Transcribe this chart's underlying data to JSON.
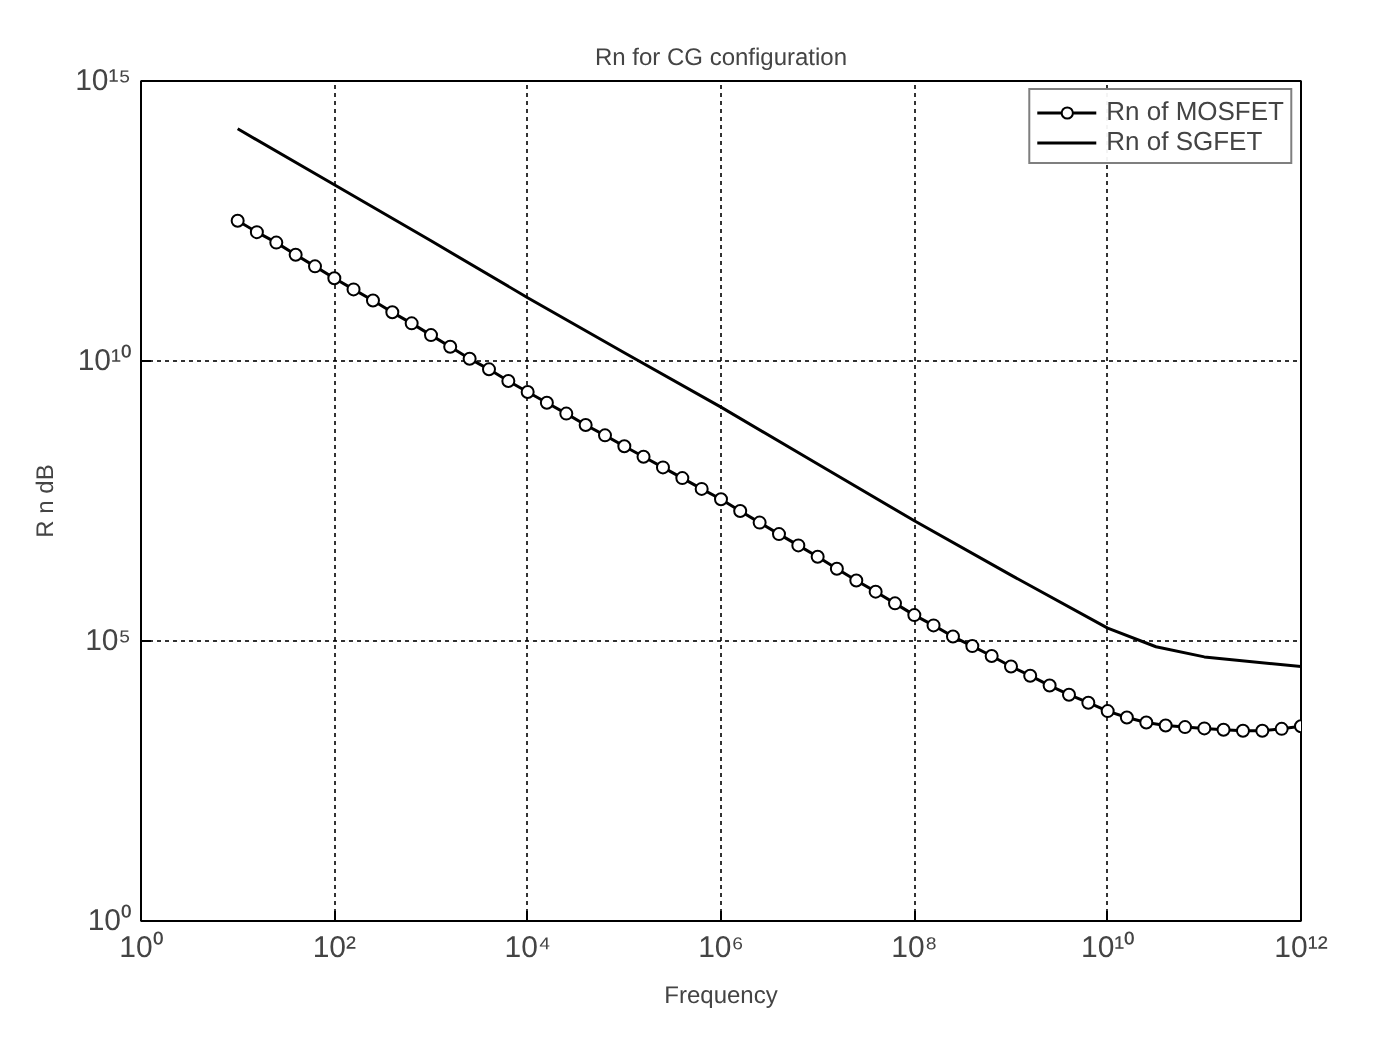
{
  "chart_data": {
    "type": "line",
    "title": "Rn for CG configuration",
    "xlabel": "Frequency",
    "ylabel": "R n dB",
    "log": "xy",
    "grid": true,
    "legend": "top right",
    "xlim": [
      1,
      1000000000000.0
    ],
    "ylim": [
      1,
      1000000000000000.0
    ],
    "xticks": [
      {
        "value": 1,
        "label": "10⁰"
      },
      {
        "value": 100.0,
        "label": "10²"
      },
      {
        "value": 10000.0,
        "label": "10⁴"
      },
      {
        "value": 1000000.0,
        "label": "10⁶"
      },
      {
        "value": 100000000.0,
        "label": "10⁸"
      },
      {
        "value": 10000000000.0,
        "label": "10¹⁰"
      },
      {
        "value": 1000000000000.0,
        "label": "10¹²"
      }
    ],
    "yticks": [
      {
        "value": 1,
        "label": "10⁰"
      },
      {
        "value": 100000.0,
        "label": "10⁵"
      },
      {
        "value": 10000000000.0,
        "label": "10¹⁰"
      },
      {
        "value": 1000000000000000.0,
        "label": "10¹⁵"
      }
    ],
    "series": [
      {
        "name": "Rn of MOSFET",
        "color": "#000000",
        "marker": "circle",
        "line_style": "solid",
        "x": [
          10.0,
          15.8,
          25.1,
          39.8,
          63.1,
          100.0,
          158.0,
          251.0,
          398.0,
          631.0,
          1000.0,
          1580.0,
          2510.0,
          3980.0,
          6310.0,
          10000.0,
          15800.0,
          25100.0,
          39800.0,
          63100.0,
          100000.0,
          158000.0,
          251000.0,
          398000.0,
          631000.0,
          1000000.0,
          1580000.0,
          2510000.0,
          3980000.0,
          6310000.0,
          10000000.0,
          15800000.0,
          25100000.0,
          39800000.0,
          63100000.0,
          100000000.0,
          158000000.0,
          251000000.0,
          398000000.0,
          631000000.0,
          1000000000.0,
          1580000000.0,
          2510000000.0,
          3980000000.0,
          6310000000.0,
          10000000000.0,
          15800000000.0,
          25100000000.0,
          39800000000.0,
          63100000000.0,
          100000000000.0,
          158000000000.0,
          251000000000.0,
          398000000000.0,
          631000000000.0,
          1000000000000.0
        ],
        "values": [
          3200000000000.0,
          2000000000000.0,
          1300000000000.0,
          790000000000.0,
          490000000000.0,
          300000000000.0,
          190000000000.0,
          120000000000.0,
          74000000000.0,
          47000000000.0,
          29000000000.0,
          18000000000.0,
          11000000000.0,
          7100000000.0,
          4400000000.0,
          2800000000.0,
          1800000000.0,
          1150000000.0,
          720000000.0,
          470000000.0,
          300000000.0,
          195000000.0,
          126000000.0,
          81000000.0,
          52000000.0,
          34000000.0,
          21000000.0,
          13000000.0,
          8100000.0,
          5100000.0,
          3200000.0,
          1950000.0,
          1200000.0,
          760000.0,
          470000.0,
          290000.0,
          190000.0,
          120000.0,
          81000.0,
          54000.0,
          35000.0,
          24000.0,
          16000.0,
          11000.0,
          7900.0,
          5600.0,
          4300.0,
          3500.0,
          3100.0,
          2900.0,
          2750.0,
          2600.0,
          2500.0,
          2500.0,
          2700.0,
          3000.0
        ]
      },
      {
        "name": "Rn of SGFET",
        "color": "#000000",
        "marker": "none",
        "line_style": "solid",
        "x": [
          10.0,
          100.0,
          1000.0,
          10000.0,
          100000.0,
          1000000.0,
          10000000.0,
          100000000.0,
          1000000000.0,
          10000000000.0,
          31600000000.0,
          100000000000.0,
          1000000000000.0
        ],
        "values": [
          140000000000000.0,
          14000000000000.0,
          1400000000000.0,
          135000000000.0,
          14000000000.0,
          1500000000.0,
          145000000.0,
          14000000.0,
          1500000.0,
          170000.0,
          79000.0,
          52000.0,
          35000.0
        ]
      }
    ]
  }
}
